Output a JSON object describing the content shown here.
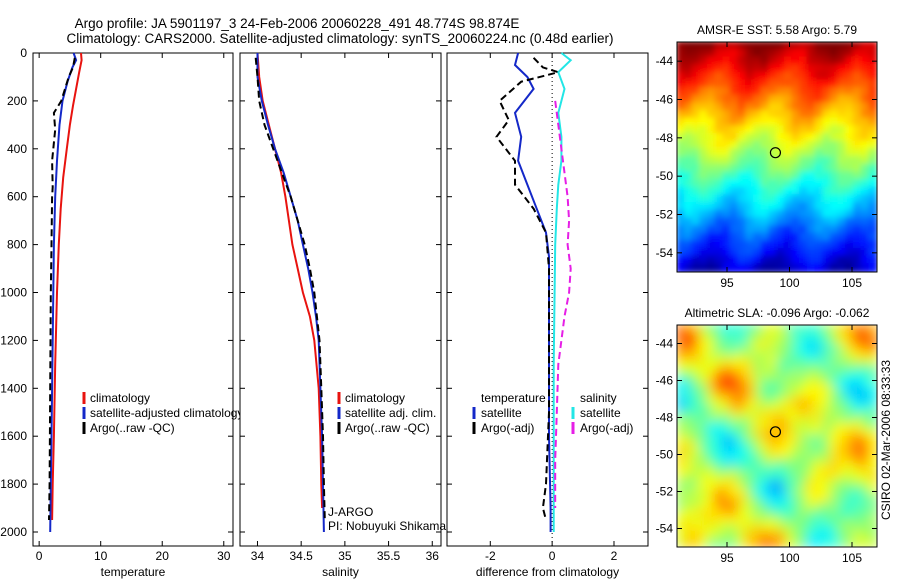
{
  "header": {
    "line1": "Argo profile: JA 5901197_3 24-Feb-2006 20060228_491 48.774S 98.874E",
    "line2": "Climatology: CARS2000. Satellite-adjusted climatology: synTS_20060224.nc (0.48d earlier)"
  },
  "colors": {
    "climatology": "#e8130f",
    "satellite": "#1428c8",
    "argo": "#000000",
    "sat_salinity": "#22e6e6",
    "argo_salinity": "#e61ee6"
  },
  "chart_data": [
    {
      "type": "line",
      "panel": "temperature",
      "xlabel": "temperature",
      "xlim": [
        -1,
        31.5
      ],
      "ylim": [
        0,
        2050
      ],
      "xticks": [
        0,
        10,
        20,
        30
      ],
      "yticks": [
        0,
        200,
        400,
        600,
        800,
        1000,
        1200,
        1400,
        1600,
        1800,
        2000
      ],
      "y_reversed": true,
      "legend": [
        "climatology",
        "satellite-adjusted climatology",
        "Argo(..raw -QC)"
      ],
      "series": [
        {
          "name": "climatology",
          "style": "solid",
          "color_key": "climatology",
          "points": [
            [
              6.8,
              0
            ],
            [
              6.9,
              30
            ],
            [
              6.5,
              80
            ],
            [
              6.0,
              150
            ],
            [
              5.5,
              220
            ],
            [
              5.0,
              300
            ],
            [
              4.5,
              400
            ],
            [
              3.9,
              520
            ],
            [
              3.5,
              650
            ],
            [
              3.2,
              800
            ],
            [
              2.9,
              1000
            ],
            [
              2.6,
              1300
            ],
            [
              2.4,
              1600
            ],
            [
              2.2,
              1800
            ],
            [
              2.1,
              1950
            ]
          ]
        },
        {
          "name": "satellite-adjusted climatology",
          "style": "solid",
          "color_key": "satellite",
          "points": [
            [
              5.6,
              0
            ],
            [
              6.0,
              30
            ],
            [
              5.4,
              60
            ],
            [
              4.6,
              120
            ],
            [
              3.8,
              200
            ],
            [
              3.3,
              300
            ],
            [
              2.9,
              450
            ],
            [
              2.6,
              600
            ],
            [
              2.4,
              800
            ],
            [
              2.3,
              1000
            ],
            [
              2.2,
              1200
            ],
            [
              2.1,
              1400
            ],
            [
              2.0,
              1600
            ],
            [
              1.9,
              1800
            ],
            [
              1.8,
              2000
            ]
          ]
        },
        {
          "name": "Argo(..raw -QC)",
          "style": "dashed",
          "color_key": "argo",
          "points": [
            [
              5.8,
              20
            ],
            [
              5.5,
              60
            ],
            [
              4.8,
              100
            ],
            [
              3.6,
              200
            ],
            [
              2.4,
              250
            ],
            [
              2.6,
              320
            ],
            [
              2.1,
              450
            ],
            [
              2.2,
              560
            ],
            [
              2.1,
              600
            ],
            [
              2.0,
              800
            ],
            [
              1.9,
              1000
            ],
            [
              1.8,
              1400
            ],
            [
              1.7,
              1800
            ],
            [
              1.6,
              1950
            ]
          ]
        }
      ]
    },
    {
      "type": "line",
      "panel": "salinity",
      "xlabel": "salinity",
      "xlim": [
        33.8,
        36.1
      ],
      "ylim": [
        0,
        2050
      ],
      "xticks": [
        34,
        34.5,
        35,
        35.5,
        36
      ],
      "xticklabels": [
        "34",
        "34.5",
        "35",
        "35.5",
        "36"
      ],
      "y_reversed": true,
      "legend": [
        "climatology",
        "satellite adj. clim.",
        "Argo(..raw -QC)"
      ],
      "annotation": [
        "J-ARGO",
        "PI: Nobuyuki Shikama"
      ],
      "series": [
        {
          "name": "climatology",
          "style": "solid",
          "color_key": "climatology",
          "points": [
            [
              34.0,
              0
            ],
            [
              34.02,
              100
            ],
            [
              34.06,
              200
            ],
            [
              34.13,
              300
            ],
            [
              34.2,
              400
            ],
            [
              34.27,
              500
            ],
            [
              34.32,
              600
            ],
            [
              34.36,
              700
            ],
            [
              34.4,
              800
            ],
            [
              34.46,
              900
            ],
            [
              34.52,
              1000
            ],
            [
              34.6,
              1100
            ],
            [
              34.65,
              1200
            ],
            [
              34.7,
              1400
            ],
            [
              34.72,
              1600
            ],
            [
              34.73,
              1800
            ],
            [
              34.74,
              1900
            ]
          ]
        },
        {
          "name": "satellite adj. clim.",
          "style": "solid",
          "color_key": "satellite",
          "points": [
            [
              34.0,
              0
            ],
            [
              34.0,
              100
            ],
            [
              34.05,
              200
            ],
            [
              34.12,
              300
            ],
            [
              34.2,
              400
            ],
            [
              34.3,
              500
            ],
            [
              34.38,
              600
            ],
            [
              34.46,
              700
            ],
            [
              34.52,
              800
            ],
            [
              34.58,
              900
            ],
            [
              34.63,
              1000
            ],
            [
              34.67,
              1100
            ],
            [
              34.7,
              1200
            ],
            [
              34.72,
              1400
            ],
            [
              34.74,
              1600
            ],
            [
              34.75,
              1800
            ],
            [
              34.76,
              2000
            ]
          ]
        },
        {
          "name": "Argo(..raw -QC)",
          "style": "dashed",
          "color_key": "argo",
          "points": [
            [
              33.98,
              20
            ],
            [
              34.0,
              100
            ],
            [
              34.02,
              200
            ],
            [
              34.08,
              300
            ],
            [
              34.18,
              400
            ],
            [
              34.28,
              500
            ],
            [
              34.38,
              600
            ],
            [
              34.46,
              700
            ],
            [
              34.54,
              800
            ],
            [
              34.6,
              900
            ],
            [
              34.65,
              1000
            ],
            [
              34.68,
              1100
            ],
            [
              34.71,
              1200
            ],
            [
              34.73,
              1400
            ],
            [
              34.75,
              1600
            ],
            [
              34.76,
              1800
            ],
            [
              34.77,
              1950
            ]
          ]
        }
      ]
    },
    {
      "type": "line",
      "panel": "difference",
      "xlabel": "difference from climatology",
      "xlim": [
        -3.4,
        3.1
      ],
      "ylim": [
        0,
        2050
      ],
      "xticks": [
        -2,
        0,
        2
      ],
      "y_reversed": true,
      "zero_line": "dotted",
      "legend_groups": [
        {
          "title": "temperature",
          "entries": [
            "satellite",
            "Argo(-adj)"
          ]
        },
        {
          "title": "salinity",
          "entries": [
            "satellite",
            "Argo(-adj)"
          ]
        }
      ],
      "series": [
        {
          "name": "temperature satellite",
          "style": "solid",
          "color_key": "satellite",
          "points": [
            [
              -1.1,
              0
            ],
            [
              -1.2,
              50
            ],
            [
              -0.8,
              100
            ],
            [
              -0.6,
              150
            ],
            [
              -1.2,
              250
            ],
            [
              -1.0,
              350
            ],
            [
              -1.1,
              450
            ],
            [
              -0.8,
              550
            ],
            [
              -0.5,
              650
            ],
            [
              -0.2,
              750
            ],
            [
              -0.1,
              850
            ],
            [
              -0.1,
              1000
            ],
            [
              -0.1,
              1300
            ],
            [
              -0.1,
              1600
            ],
            [
              -0.05,
              1900
            ],
            [
              -0.05,
              2000
            ]
          ]
        },
        {
          "name": "temperature Argo(-adj)",
          "style": "dashed",
          "color_key": "argo",
          "points": [
            [
              -0.6,
              20
            ],
            [
              -0.3,
              60
            ],
            [
              0.2,
              80
            ],
            [
              -1.0,
              120
            ],
            [
              -1.7,
              200
            ],
            [
              -1.4,
              280
            ],
            [
              -1.8,
              350
            ],
            [
              -1.2,
              450
            ],
            [
              -1.2,
              550
            ],
            [
              -0.6,
              650
            ],
            [
              -0.2,
              750
            ],
            [
              -0.1,
              900
            ],
            [
              -0.1,
              1200
            ],
            [
              -0.1,
              1500
            ],
            [
              -0.2,
              1800
            ],
            [
              -0.3,
              1900
            ],
            [
              -0.2,
              1950
            ]
          ]
        },
        {
          "name": "salinity satellite",
          "style": "solid",
          "color_key": "sat_salinity",
          "points": [
            [
              0.3,
              0
            ],
            [
              0.6,
              30
            ],
            [
              0.2,
              80
            ],
            [
              0.4,
              150
            ],
            [
              0.2,
              250
            ],
            [
              0.3,
              350
            ],
            [
              0.3,
              450
            ],
            [
              0.2,
              550
            ],
            [
              0.15,
              650
            ],
            [
              0.1,
              800
            ],
            [
              0.08,
              1000
            ],
            [
              0.05,
              1300
            ],
            [
              0.05,
              1600
            ],
            [
              0.05,
              2000
            ]
          ]
        },
        {
          "name": "salinity Argo(-adj)",
          "style": "dashed",
          "color_key": "argo_salinity",
          "points": [
            [
              0.1,
              200
            ],
            [
              0.2,
              300
            ],
            [
              0.3,
              400
            ],
            [
              0.4,
              500
            ],
            [
              0.5,
              600
            ],
            [
              0.55,
              700
            ],
            [
              0.5,
              800
            ],
            [
              0.6,
              900
            ],
            [
              0.55,
              1000
            ],
            [
              0.4,
              1100
            ],
            [
              0.3,
              1200
            ],
            [
              0.2,
              1300
            ],
            [
              0.15,
              1500
            ],
            [
              0.1,
              1700
            ],
            [
              0.1,
              1900
            ]
          ]
        }
      ]
    },
    {
      "type": "heatmap",
      "panel": "sst",
      "title": "AMSR-E SST: 5.58 Argo: 5.79",
      "xlim": [
        91,
        107
      ],
      "ylim": [
        -55,
        -43
      ],
      "xticks": [
        95,
        100,
        105
      ],
      "yticks": [
        -44,
        -46,
        -48,
        -50,
        -52,
        -54
      ],
      "marker": {
        "lon": 98.874,
        "lat": -48.774
      },
      "sst_bands": [
        {
          "lat": -43,
          "value": 12.5
        },
        {
          "lat": -45,
          "value": 11.0
        },
        {
          "lat": -46.5,
          "value": 9.0
        },
        {
          "lat": -48,
          "value": 6.5
        },
        {
          "lat": -50,
          "value": 4.5
        },
        {
          "lat": -52,
          "value": 3.0
        },
        {
          "lat": -54,
          "value": 1.5
        }
      ],
      "colormap": "jet"
    },
    {
      "type": "heatmap",
      "panel": "sla",
      "title": "Altimetric SLA: -0.096 Argo: -0.062",
      "xlim": [
        91,
        107
      ],
      "ylim": [
        -55,
        -43
      ],
      "xticks": [
        95,
        100,
        105
      ],
      "yticks": [
        -44,
        -46,
        -48,
        -50,
        -52,
        -54
      ],
      "marker": {
        "lon": 98.874,
        "lat": -48.774
      },
      "colormap": "jet",
      "side_label": "CSIRO 02-Mar-2006 08:33:33"
    }
  ]
}
